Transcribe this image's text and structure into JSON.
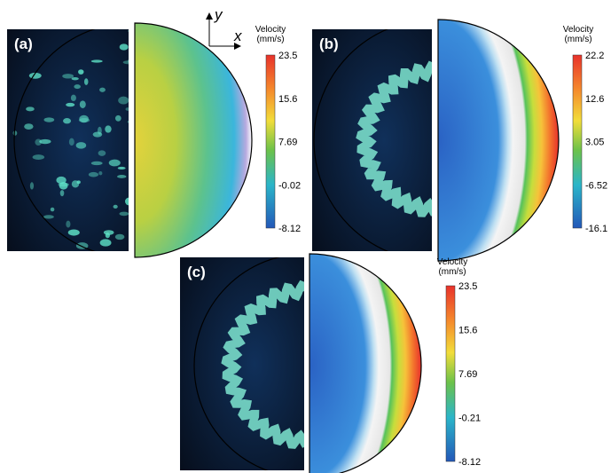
{
  "axis_indicator": {
    "y": "y",
    "x": "x"
  },
  "panels": [
    {
      "label": "(a)",
      "colorbar": {
        "title": [
          "Velocity",
          "(mm/s)"
        ],
        "ticks": [
          23.5,
          15.6,
          7.69,
          -0.02,
          -8.12
        ]
      }
    },
    {
      "label": "(b)",
      "colorbar": {
        "title": [
          "Velocity",
          "(mm/s)"
        ],
        "ticks": [
          22.2,
          12.6,
          3.05,
          -6.52,
          -16.1
        ]
      }
    },
    {
      "label": "(c)",
      "colorbar": {
        "title": [
          "Velocity",
          "(mm/s)"
        ],
        "ticks": [
          23.5,
          15.6,
          7.69,
          -0.21,
          -8.12
        ]
      }
    }
  ]
}
